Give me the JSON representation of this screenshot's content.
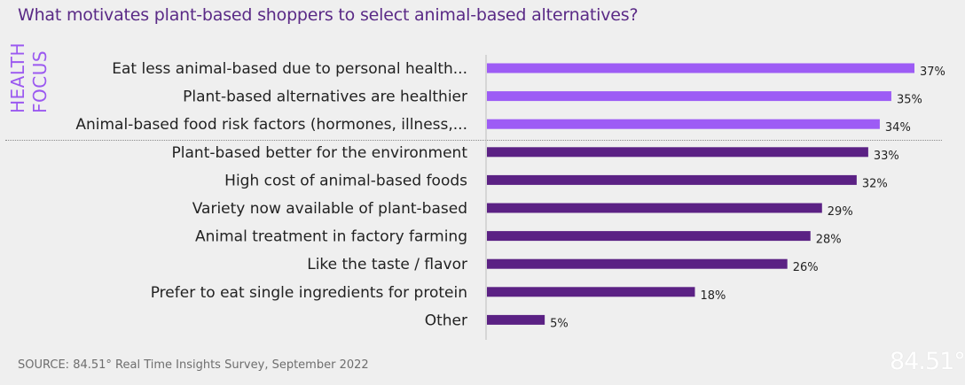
{
  "title": "What motivates plant-based shoppers to select animal-based alternatives?",
  "group_label": [
    "HEALTH",
    "FOCUS"
  ],
  "source": "SOURCE: 84.51° Real Time Insights Survey, September 2022",
  "logo_text": "84.51°",
  "colors": {
    "health": "#9d5cf5",
    "other": "#5b2184",
    "title": "#5a2a86"
  },
  "chart_data": {
    "type": "bar",
    "orientation": "horizontal",
    "categories": [
      "Eat less animal-based due to personal health...",
      "Plant-based alternatives are healthier",
      "Animal-based food risk factors (hormones, illness,...",
      "Plant-based better for the environment",
      "High cost of animal-based foods",
      "Variety now available of plant-based",
      "Animal treatment in factory farming",
      "Like the taste / flavor",
      "Prefer to eat single ingredients for protein",
      "Other"
    ],
    "values": [
      37,
      35,
      34,
      33,
      32,
      29,
      28,
      26,
      18,
      5
    ],
    "value_labels": [
      "37%",
      "35%",
      "34%",
      "33%",
      "32%",
      "29%",
      "28%",
      "26%",
      "18%",
      "5%"
    ],
    "groups": [
      "health",
      "health",
      "health",
      "other",
      "other",
      "other",
      "other",
      "other",
      "other",
      "other"
    ],
    "xlim": [
      0,
      37
    ],
    "grid": false,
    "legend": "none"
  }
}
